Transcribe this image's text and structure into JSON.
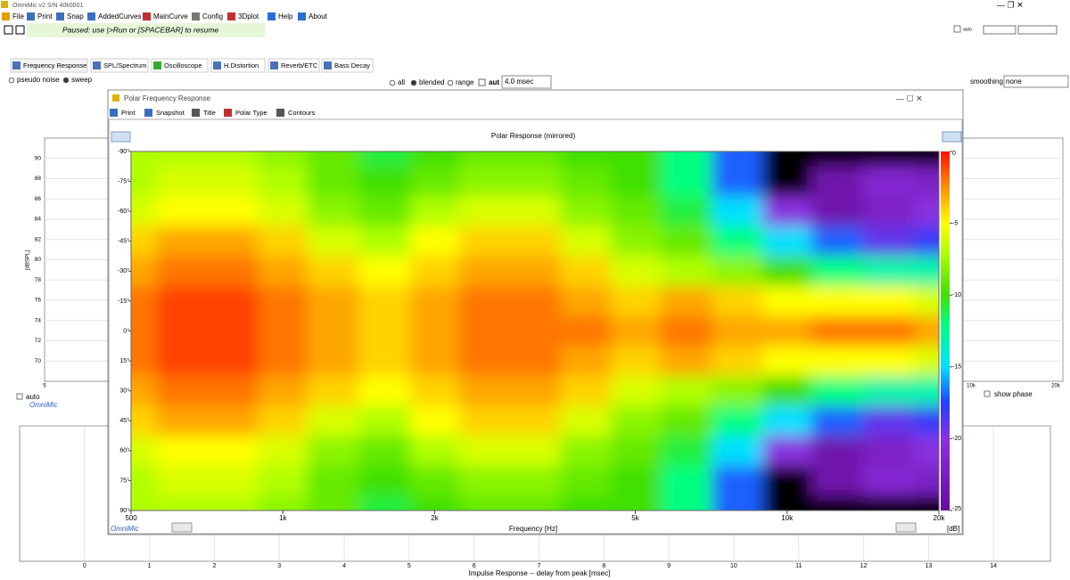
{
  "window": {
    "title": "OmniMic v2  S/N 40k0001"
  },
  "menu": [
    "File",
    "Print",
    "Snap",
    "AddedCurves",
    "MainCurve",
    "Config",
    "3Dplot",
    "Help",
    "About"
  ],
  "status": "Paused: use |>Run or [SPACEBAR] to resume",
  "tabs": [
    "Frequency Response",
    "SPL/Spectrum",
    "Oscilloscope",
    "H.Distortion",
    "Reverb/ETC",
    "Bass Decay"
  ],
  "options": {
    "pseudo_noise": "pseudo noise",
    "sweep": "sweep",
    "all": "all",
    "blended": "blended",
    "range": "range",
    "aut": "aut",
    "window": "4.0 msec",
    "smoothing": "smoothing",
    "smoothing_value": "none",
    "top_auto": "auto"
  },
  "spl_chart": {
    "y_label": "[dBSPL]",
    "ylim": [
      68,
      92
    ],
    "yticks": [
      70,
      72,
      74,
      76,
      78,
      80,
      82,
      84,
      86,
      88,
      90
    ],
    "x_first": "5",
    "right_xticks": [
      "10k",
      "20k"
    ],
    "auto": "auto",
    "show_phase": "show phase",
    "brand": "OmniMic"
  },
  "impulse": {
    "xlim": [
      -1,
      15
    ],
    "xticks": [
      0,
      1,
      2,
      3,
      4,
      5,
      6,
      7,
      8,
      9,
      10,
      11,
      12,
      13,
      14
    ],
    "x_label": "Impulse Response -- delay from peak [msec]"
  },
  "popup": {
    "title": "Polar Frequency Response",
    "toolbar": [
      "Print",
      "Snapshot",
      "Title",
      "Polar Type",
      "Contours"
    ]
  },
  "chart_data": {
    "type": "heatmap",
    "title": "Polar Response (mirrored)",
    "x_label": "Frequency [Hz]",
    "colorbar_label": "[dB]",
    "brand": "OmniMic",
    "log_x": true,
    "x": [
      500,
      630,
      800,
      1000,
      1250,
      1600,
      2000,
      2500,
      3150,
      4000,
      5000,
      6300,
      8000,
      10000,
      12500,
      16000,
      20000
    ],
    "y": [
      -90,
      -75,
      -60,
      -45,
      -30,
      -15,
      0,
      15,
      30,
      45,
      60,
      75,
      90
    ],
    "z": [
      [
        -7,
        -7,
        -7,
        -8,
        -9,
        -11,
        -10,
        -9,
        -9,
        -10,
        -10,
        -12,
        -17,
        -27,
        -27,
        -27,
        -27
      ],
      [
        -7,
        -6,
        -6,
        -7,
        -9,
        -10,
        -9,
        -8,
        -8,
        -9,
        -10,
        -12,
        -17,
        -26,
        -24,
        -21,
        -22
      ],
      [
        -6,
        -5,
        -5,
        -6,
        -8,
        -9,
        -7,
        -6,
        -6,
        -8,
        -9,
        -11,
        -15,
        -20,
        -24,
        -22,
        -20
      ],
      [
        -4,
        -3,
        -3,
        -4,
        -6,
        -7,
        -5,
        -4,
        -4,
        -6,
        -8,
        -9,
        -12,
        -15,
        -17,
        -19,
        -18
      ],
      [
        -3,
        -2,
        -2,
        -3,
        -4,
        -5,
        -4,
        -3,
        -3,
        -4,
        -6,
        -7,
        -8,
        -10,
        -12,
        -13,
        -13
      ],
      [
        -2,
        -1,
        -1,
        -2,
        -3,
        -4,
        -3,
        -2,
        -2,
        -3,
        -4,
        -3,
        -4,
        -5,
        -5,
        -5,
        -6
      ],
      [
        -2,
        -1,
        -1,
        -2,
        -3,
        -4,
        -3,
        -2,
        -2,
        -2,
        -3,
        -2,
        -3,
        -3,
        -2,
        -2,
        -3
      ],
      [
        -2,
        -1,
        -1,
        -2,
        -3,
        -4,
        -3,
        -2,
        -2,
        -3,
        -4,
        -3,
        -4,
        -5,
        -5,
        -5,
        -6
      ],
      [
        -3,
        -2,
        -2,
        -3,
        -4,
        -5,
        -4,
        -3,
        -3,
        -4,
        -6,
        -7,
        -8,
        -10,
        -12,
        -13,
        -13
      ],
      [
        -4,
        -3,
        -3,
        -4,
        -6,
        -7,
        -5,
        -4,
        -4,
        -6,
        -8,
        -9,
        -12,
        -15,
        -17,
        -19,
        -18
      ],
      [
        -6,
        -5,
        -5,
        -6,
        -8,
        -9,
        -7,
        -6,
        -6,
        -8,
        -9,
        -11,
        -15,
        -20,
        -24,
        -22,
        -20
      ],
      [
        -7,
        -6,
        -6,
        -7,
        -9,
        -10,
        -9,
        -8,
        -8,
        -9,
        -10,
        -12,
        -17,
        -26,
        -24,
        -21,
        -22
      ],
      [
        -7,
        -7,
        -7,
        -8,
        -9,
        -11,
        -10,
        -9,
        -9,
        -10,
        -10,
        -12,
        -17,
        -27,
        -27,
        -27,
        -27
      ]
    ],
    "xlim": [
      500,
      20000
    ],
    "xticks": [
      500,
      {
        "value": 1000,
        "label": "1k"
      },
      {
        "value": 2000,
        "label": "2k"
      },
      {
        "value": 5000,
        "label": "5k"
      },
      {
        "value": 10000,
        "label": "10k"
      },
      {
        "value": 20000,
        "label": "20k"
      }
    ],
    "ylim": [
      -90,
      90
    ],
    "yticks": [
      {
        "value": -90,
        "label": "-90°"
      },
      {
        "value": -75,
        "label": "-75°"
      },
      {
        "value": -60,
        "label": "-60°"
      },
      {
        "value": -45,
        "label": "-45°"
      },
      {
        "value": -30,
        "label": "-30°"
      },
      {
        "value": -15,
        "label": "-15°"
      },
      {
        "value": 0,
        "label": "0°"
      },
      {
        "value": 15,
        "label": "15°"
      },
      {
        "value": 30,
        "label": "30°"
      },
      {
        "value": 45,
        "label": "45°"
      },
      {
        "value": 60,
        "label": "60°"
      },
      {
        "value": 75,
        "label": "75°"
      },
      {
        "value": 90,
        "label": "90°"
      }
    ],
    "zlim": [
      -25,
      0
    ],
    "zticks": [
      0,
      -5,
      -10,
      -15,
      -20,
      -25
    ]
  }
}
